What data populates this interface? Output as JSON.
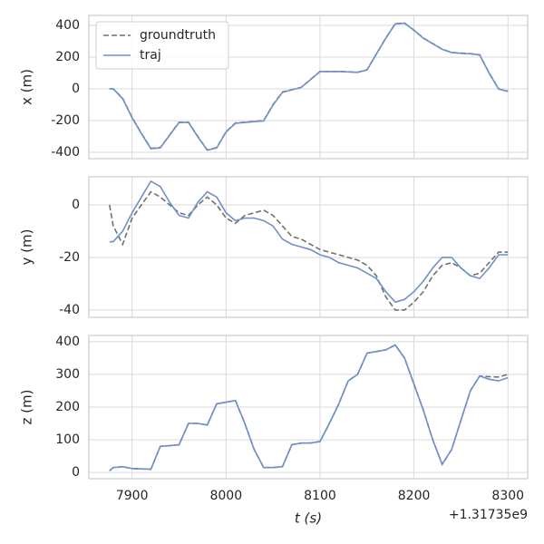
{
  "chart_data": [
    {
      "type": "line",
      "ylabel": "x (m)",
      "legend": "upper left",
      "x": [
        7876,
        7880,
        7890,
        7900,
        7910,
        7920,
        7930,
        7940,
        7950,
        7960,
        7970,
        7980,
        7990,
        8000,
        8010,
        8020,
        8030,
        8040,
        8050,
        8060,
        8070,
        8080,
        8090,
        8100,
        8110,
        8120,
        8130,
        8140,
        8150,
        8160,
        8170,
        8180,
        8190,
        8200,
        8210,
        8220,
        8230,
        8240,
        8250,
        8260,
        8270,
        8280,
        8290,
        8300
      ],
      "xlim": [
        7854,
        8321
      ],
      "xticks": [
        7900,
        8000,
        8100,
        8200,
        8300
      ],
      "ylim": [
        -440,
        463
      ],
      "yticks": [
        -400,
        -200,
        0,
        200,
        400
      ],
      "grid": true,
      "series": [
        {
          "name": "groundtruth",
          "color": "#707070",
          "dashed": true,
          "values": [
            0,
            0,
            -60,
            -180,
            -280,
            -375,
            -370,
            -290,
            -210,
            -210,
            -300,
            -385,
            -370,
            -270,
            -215,
            -210,
            -205,
            -200,
            -100,
            -20,
            -5,
            10,
            60,
            110,
            110,
            110,
            108,
            105,
            120,
            220,
            320,
            410,
            415,
            370,
            320,
            285,
            250,
            230,
            225,
            222,
            215,
            100,
            0,
            -15
          ]
        },
        {
          "name": "traj",
          "color": "#6f8fc9",
          "values": [
            0,
            0,
            -62,
            -182,
            -282,
            -377,
            -372,
            -292,
            -212,
            -212,
            -302,
            -387,
            -372,
            -272,
            -217,
            -212,
            -207,
            -202,
            -102,
            -22,
            -6,
            9,
            59,
            109,
            109,
            109,
            107,
            104,
            119,
            219,
            319,
            409,
            414,
            369,
            319,
            284,
            249,
            229,
            224,
            221,
            214,
            99,
            -1,
            -16
          ]
        }
      ]
    },
    {
      "type": "line",
      "ylabel": "y (m)",
      "x": [
        7876,
        7880,
        7890,
        7900,
        7910,
        7920,
        7930,
        7940,
        7950,
        7960,
        7970,
        7980,
        7990,
        8000,
        8010,
        8020,
        8030,
        8040,
        8050,
        8060,
        8070,
        8080,
        8090,
        8100,
        8110,
        8120,
        8130,
        8140,
        8150,
        8160,
        8170,
        8180,
        8190,
        8200,
        8210,
        8220,
        8230,
        8240,
        8250,
        8260,
        8270,
        8280,
        8290,
        8300
      ],
      "xlim": [
        7854,
        8321
      ],
      "xticks": [
        7900,
        8000,
        8100,
        8200,
        8300
      ],
      "ylim": [
        -42.8,
        10.7
      ],
      "yticks": [
        -40,
        -20,
        0
      ],
      "grid": true,
      "series": [
        {
          "color": "#707070",
          "dashed": true,
          "values": [
            0,
            -8,
            -15,
            -5,
            0,
            5,
            3,
            0,
            -3,
            -4,
            0,
            3,
            0,
            -5,
            -7,
            -4,
            -3,
            -2,
            -4,
            -8,
            -12,
            -13,
            -15,
            -17,
            -18,
            -19,
            -20,
            -21,
            -23,
            -27,
            -35,
            -40,
            -40,
            -37,
            -33,
            -27,
            -23,
            -22,
            -24,
            -27,
            -26,
            -22,
            -18,
            -18
          ]
        },
        {
          "color": "#6f8fc9",
          "values": [
            -14,
            -14,
            -10,
            -3,
            3,
            9,
            7,
            1,
            -4,
            -5,
            1,
            5,
            3,
            -3,
            -6,
            -5,
            -5,
            -6,
            -8,
            -13,
            -15,
            -16,
            -17,
            -19,
            -20,
            -22,
            -23,
            -24,
            -26,
            -28,
            -33,
            -37,
            -36,
            -33,
            -29,
            -24,
            -20,
            -20,
            -24,
            -27,
            -28,
            -24,
            -19,
            -19
          ]
        }
      ]
    },
    {
      "type": "line",
      "ylabel": "z (m)",
      "xlabel": "t (s)",
      "x_offset_label": "+1.31735e9",
      "x": [
        7876,
        7880,
        7890,
        7900,
        7910,
        7920,
        7930,
        7940,
        7950,
        7960,
        7970,
        7980,
        7990,
        8000,
        8010,
        8020,
        8030,
        8040,
        8050,
        8060,
        8070,
        8080,
        8090,
        8100,
        8110,
        8120,
        8130,
        8140,
        8150,
        8160,
        8170,
        8180,
        8190,
        8200,
        8210,
        8220,
        8230,
        8240,
        8250,
        8260,
        8270,
        8280,
        8290,
        8300
      ],
      "xlim": [
        7854,
        8321
      ],
      "xticks": [
        7900,
        8000,
        8100,
        8200,
        8300
      ],
      "ylim": [
        -19,
        419
      ],
      "yticks": [
        0,
        100,
        200,
        300,
        400
      ],
      "grid": true,
      "series": [
        {
          "color": "#707070",
          "dashed": true,
          "values": [
            5,
            15,
            18,
            12,
            11,
            10,
            80,
            82,
            85,
            150,
            150,
            145,
            210,
            215,
            220,
            150,
            70,
            15,
            15,
            18,
            85,
            90,
            90,
            95,
            150,
            210,
            280,
            300,
            365,
            370,
            375,
            390,
            350,
            270,
            190,
            100,
            25,
            70,
            160,
            250,
            295,
            293,
            292,
            300
          ]
        },
        {
          "color": "#6f8fc9",
          "values": [
            5,
            15,
            18,
            12,
            11,
            10,
            80,
            82,
            85,
            150,
            150,
            145,
            210,
            215,
            220,
            150,
            70,
            15,
            15,
            18,
            85,
            90,
            90,
            95,
            150,
            210,
            280,
            300,
            365,
            370,
            375,
            390,
            350,
            270,
            190,
            100,
            25,
            70,
            160,
            250,
            295,
            285,
            280,
            290
          ]
        }
      ]
    }
  ]
}
